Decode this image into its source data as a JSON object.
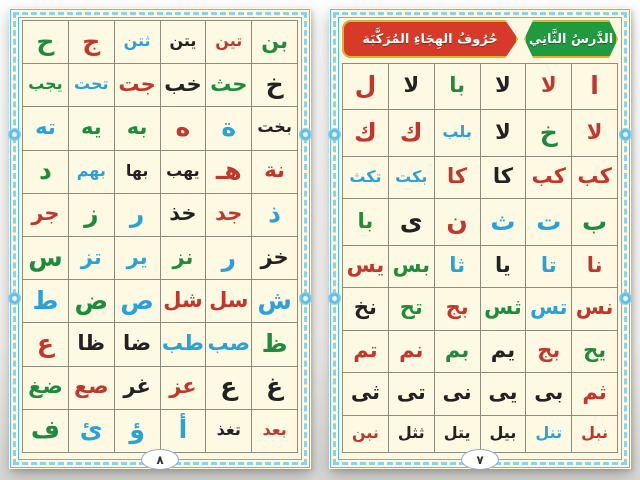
{
  "palette": {
    "r": "#c2372b",
    "g": "#1f8b3c",
    "b": "#2aa2d8",
    "k": "#222222"
  },
  "right_page": {
    "header": {
      "title": "حُرُوفُ الهِجَاءِ المُرَكَّبَة",
      "lesson": "الدَّرسُ الثَّانِي"
    },
    "page_number": "٧",
    "rows": [
      [
        [
          "ا",
          "r"
        ],
        [
          "لا",
          "r"
        ],
        [
          "لا",
          "k"
        ],
        [
          "با",
          "g"
        ],
        [
          "لا",
          "k"
        ],
        [
          "ل",
          "r"
        ]
      ],
      [
        [
          "لا",
          "r"
        ],
        [
          "خ",
          "g"
        ],
        [
          "لا",
          "k"
        ],
        [
          "بلب",
          "b"
        ],
        [
          "ك",
          "r"
        ],
        [
          "ك",
          "r"
        ]
      ],
      [
        [
          "كب",
          "r"
        ],
        [
          "كب",
          "r"
        ],
        [
          "كا",
          "k"
        ],
        [
          "كا",
          "r"
        ],
        [
          "بكت",
          "b"
        ],
        [
          "تكث",
          "b"
        ]
      ],
      [
        [
          "ب",
          "g"
        ],
        [
          "ت",
          "b"
        ],
        [
          "ث",
          "b"
        ],
        [
          "ن",
          "r"
        ],
        [
          "ى",
          "k"
        ],
        [
          "با",
          "g"
        ]
      ],
      [
        [
          "نا",
          "r"
        ],
        [
          "تا",
          "b"
        ],
        [
          "يا",
          "k"
        ],
        [
          "ثا",
          "b"
        ],
        [
          "بس",
          "g"
        ],
        [
          "يس",
          "r"
        ]
      ],
      [
        [
          "نس",
          "r"
        ],
        [
          "تس",
          "b"
        ],
        [
          "ثس",
          "g"
        ],
        [
          "بج",
          "r"
        ],
        [
          "تح",
          "g"
        ],
        [
          "نخ",
          "k"
        ]
      ],
      [
        [
          "يح",
          "g"
        ],
        [
          "بج",
          "r"
        ],
        [
          "يم",
          "k"
        ],
        [
          "بم",
          "g"
        ],
        [
          "نم",
          "r"
        ],
        [
          "تم",
          "r"
        ]
      ],
      [
        [
          "ثم",
          "r"
        ],
        [
          "بى",
          "k"
        ],
        [
          "يى",
          "k"
        ],
        [
          "نى",
          "k"
        ],
        [
          "تى",
          "k"
        ],
        [
          "ثى",
          "k"
        ]
      ],
      [
        [
          "نبل",
          "r"
        ],
        [
          "تنل",
          "b"
        ],
        [
          "بيل",
          "k"
        ],
        [
          "يتل",
          "k"
        ],
        [
          "ثثل",
          "k"
        ],
        [
          "نبن",
          "r"
        ]
      ]
    ]
  },
  "left_page": {
    "page_number": "٨",
    "rows": [
      [
        [
          "بن",
          "g"
        ],
        [
          "تين",
          "r"
        ],
        [
          "يتن",
          "k"
        ],
        [
          "ثتن",
          "b"
        ],
        [
          "ج",
          "r"
        ],
        [
          "ح",
          "g"
        ]
      ],
      [
        [
          "خ",
          "k"
        ],
        [
          "حث",
          "g"
        ],
        [
          "خب",
          "k"
        ],
        [
          "جت",
          "r"
        ],
        [
          "تحت",
          "b"
        ],
        [
          "يجب",
          "g"
        ]
      ],
      [
        [
          "بخت",
          "k"
        ],
        [
          "ة",
          "b"
        ],
        [
          "ه",
          "r"
        ],
        [
          "به",
          "g"
        ],
        [
          "يه",
          "g"
        ],
        [
          "ته",
          "b"
        ]
      ],
      [
        [
          "نة",
          "r"
        ],
        [
          "هـ",
          "r"
        ],
        [
          "يهب",
          "k"
        ],
        [
          "بها",
          "k"
        ],
        [
          "بهم",
          "b"
        ],
        [
          "د",
          "g"
        ]
      ],
      [
        [
          "ذ",
          "b"
        ],
        [
          "جد",
          "r"
        ],
        [
          "خذ",
          "k"
        ],
        [
          "ر",
          "b"
        ],
        [
          "ز",
          "g"
        ],
        [
          "جر",
          "r"
        ]
      ],
      [
        [
          "خز",
          "k"
        ],
        [
          "ر",
          "b"
        ],
        [
          "نز",
          "g"
        ],
        [
          "ير",
          "b"
        ],
        [
          "تز",
          "b"
        ],
        [
          "س",
          "g"
        ]
      ],
      [
        [
          "ش",
          "b"
        ],
        [
          "سل",
          "r"
        ],
        [
          "شل",
          "r"
        ],
        [
          "ص",
          "b"
        ],
        [
          "ض",
          "g"
        ],
        [
          "ط",
          "b"
        ]
      ],
      [
        [
          "ظ",
          "g"
        ],
        [
          "صب",
          "b"
        ],
        [
          "طب",
          "b"
        ],
        [
          "ضا",
          "k"
        ],
        [
          "ظا",
          "k"
        ],
        [
          "ع",
          "r"
        ]
      ],
      [
        [
          "غ",
          "k"
        ],
        [
          "ع",
          "k"
        ],
        [
          "عز",
          "r"
        ],
        [
          "غر",
          "k"
        ],
        [
          "صع",
          "r"
        ],
        [
          "ضغ",
          "g"
        ]
      ],
      [
        [
          "بعد",
          "r"
        ],
        [
          "تغذ",
          "k"
        ],
        [
          "أ",
          "b"
        ],
        [
          "ؤ",
          "b"
        ],
        [
          "ئ",
          "b"
        ],
        [
          "ف",
          "g"
        ]
      ]
    ]
  }
}
